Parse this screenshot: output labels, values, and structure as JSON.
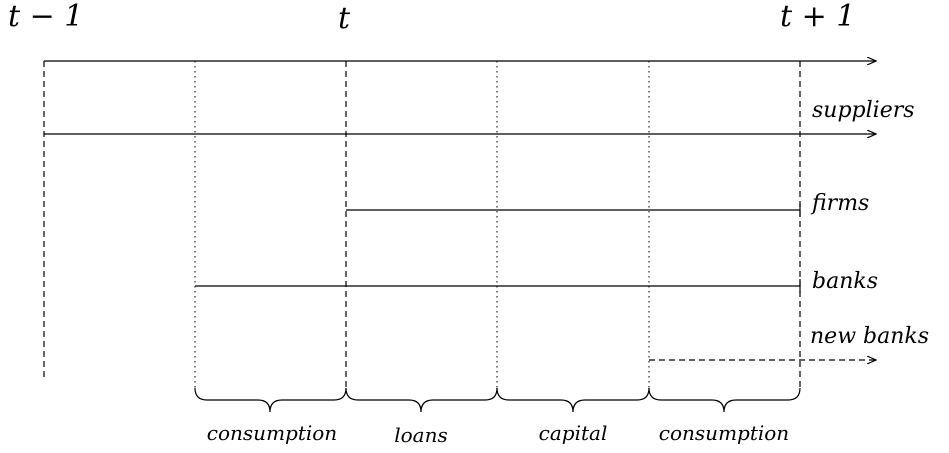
{
  "time_labels": {
    "t_minus_1": "t − 1",
    "t": "t",
    "t_plus_1": "t + 1"
  },
  "agents": {
    "suppliers": "suppliers",
    "firms": "firms",
    "banks": "banks",
    "new_banks": "new banks"
  },
  "periods": [
    "consumption",
    "loans",
    "capital",
    "consumption"
  ]
}
